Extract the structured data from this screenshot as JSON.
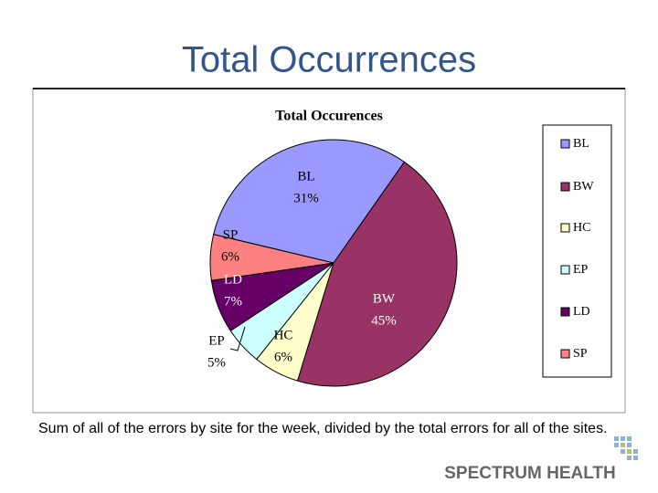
{
  "slide": {
    "title": "Total Occurrences",
    "caption": "Sum of all of the errors by site for the week, divided by the total errors for all of the sites.",
    "logo": "SPECTRUM HEALTH"
  },
  "chart_data": {
    "type": "pie",
    "title": "Total Occurences",
    "categories": [
      "BL",
      "BW",
      "HC",
      "EP",
      "LD",
      "SP"
    ],
    "values": [
      31,
      45,
      6,
      5,
      7,
      6
    ],
    "value_labels": [
      "31%",
      "45%",
      "6%",
      "5%",
      "7%",
      "6%"
    ],
    "colors": [
      "#9999ff",
      "#993366",
      "#ffffcc",
      "#ccffff",
      "#660066",
      "#ff8080"
    ],
    "legend": "right"
  }
}
